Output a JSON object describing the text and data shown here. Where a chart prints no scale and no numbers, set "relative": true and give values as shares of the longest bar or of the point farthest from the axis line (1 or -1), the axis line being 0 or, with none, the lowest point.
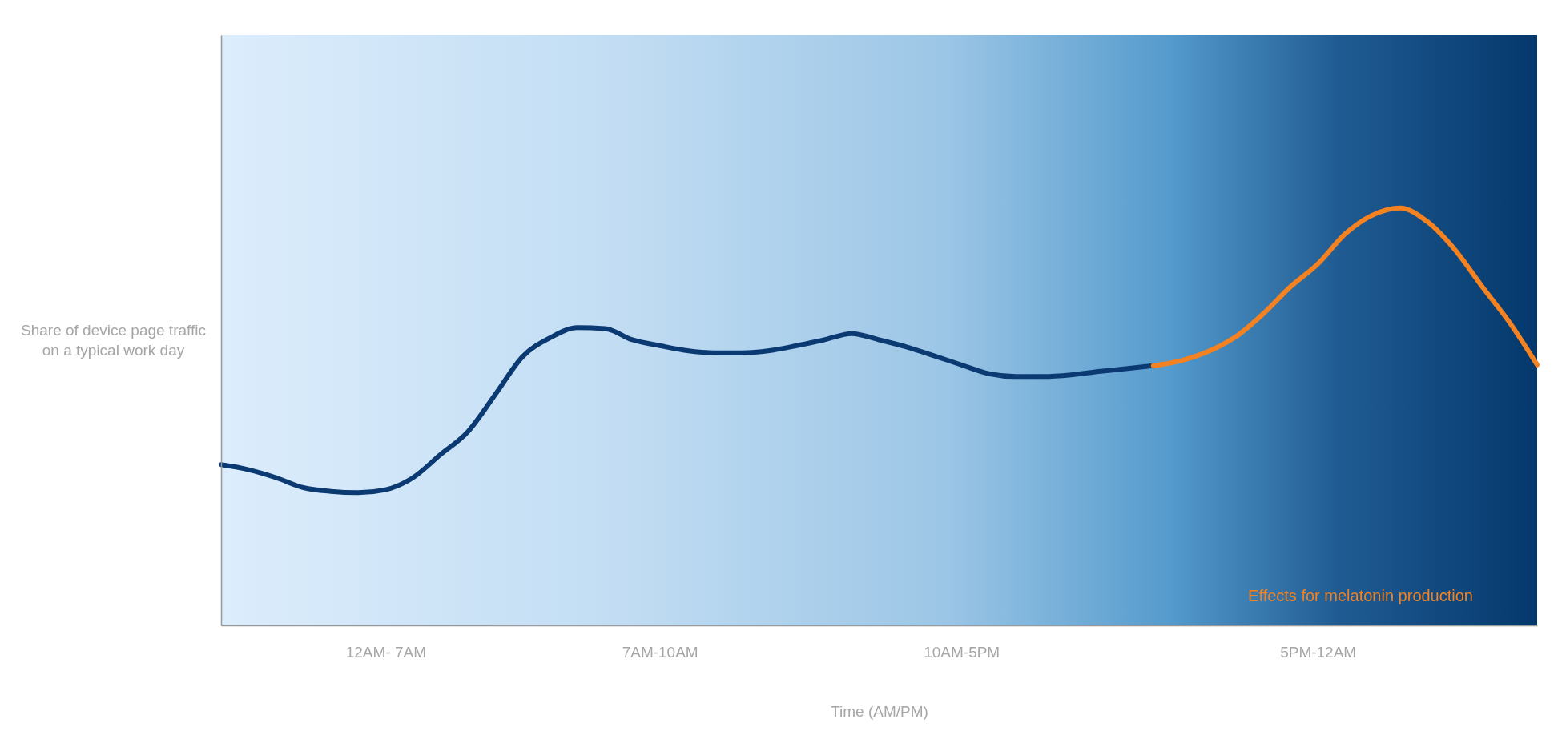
{
  "chart_data": {
    "type": "line",
    "relative": true,
    "xlabel": "Time (AM/PM)",
    "ylabel": "Share of device page traffic on a typical work day",
    "categories": [
      null,
      null,
      null,
      null,
      null,
      null,
      "12AM- 7AM",
      null,
      null,
      null,
      null,
      null,
      null,
      null,
      null,
      null,
      "7AM-10AM",
      null,
      null,
      null,
      null,
      null,
      null,
      null,
      null,
      null,
      null,
      "10AM-5PM",
      null,
      null,
      null,
      null,
      null,
      null,
      null,
      null,
      null,
      null,
      null,
      null,
      "5PM-12AM",
      null,
      null,
      null,
      null,
      null,
      null,
      null,
      null
    ],
    "series": [
      {
        "color": "#0b3a73",
        "values": [
          0.385,
          0.373,
          0.354,
          0.33,
          0.321,
          0.318,
          0.325,
          0.354,
          0.409,
          0.464,
          0.553,
          0.644,
          0.689,
          0.713,
          0.711,
          0.684,
          0.67,
          0.658,
          0.653,
          0.653,
          0.658,
          0.67,
          0.684,
          0.699,
          0.684,
          0.667,
          0.646,
          0.624,
          0.603,
          0.596,
          0.596,
          0.6,
          0.608,
          0.615,
          0.622,
          null,
          null,
          null,
          null,
          null,
          null,
          null,
          null,
          null,
          null,
          null,
          null,
          null,
          null
        ]
      },
      {
        "name": "Effects for melatonin production",
        "color": "#f58220",
        "values": [
          null,
          null,
          null,
          null,
          null,
          null,
          null,
          null,
          null,
          null,
          null,
          null,
          null,
          null,
          null,
          null,
          null,
          null,
          null,
          null,
          null,
          null,
          null,
          null,
          null,
          null,
          null,
          null,
          null,
          null,
          null,
          null,
          null,
          null,
          0.622,
          0.634,
          0.656,
          0.691,
          0.746,
          0.811,
          0.866,
          0.938,
          0.983,
          1.0,
          0.967,
          0.9,
          0.811,
          0.725,
          0.624
        ]
      }
    ],
    "legend": "bottom right",
    "marker": "none",
    "line_style": "solid"
  }
}
